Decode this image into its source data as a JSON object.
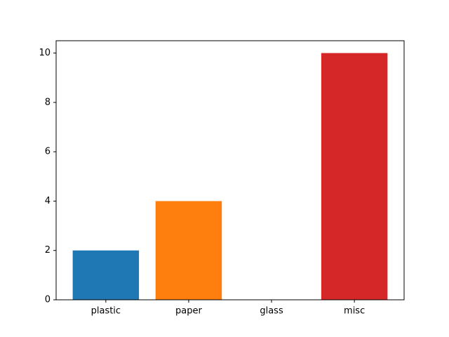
{
  "chart_data": {
    "type": "bar",
    "categories": [
      "plastic",
      "paper",
      "glass",
      "misc"
    ],
    "values": [
      2,
      4,
      0,
      10
    ],
    "colors": [
      "#1f77b4",
      "#ff7f0e",
      "#2ca02c",
      "#d62728"
    ],
    "title": "",
    "xlabel": "",
    "ylabel": "",
    "ylim": [
      0,
      10.5
    ],
    "yticks": [
      0,
      2,
      4,
      6,
      8,
      10
    ],
    "grid": false
  }
}
